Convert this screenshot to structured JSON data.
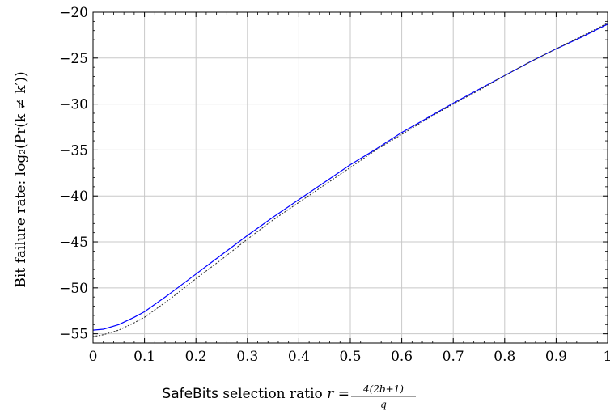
{
  "chart_data": {
    "type": "line",
    "xlim": [
      0,
      1
    ],
    "ylim": [
      -56,
      -20
    ],
    "x_ticks": [
      0,
      0.1,
      0.2,
      0.3,
      0.4,
      0.5,
      0.6,
      0.7,
      0.8,
      0.9,
      1
    ],
    "x_tick_labels": [
      "0",
      "0.1",
      "0.2",
      "0.3",
      "0.4",
      "0.5",
      "0.6",
      "0.7",
      "0.8",
      "0.9",
      "1"
    ],
    "y_ticks": [
      -55,
      -50,
      -45,
      -40,
      -35,
      -30,
      -25,
      -20
    ],
    "y_tick_labels": [
      "−55",
      "−50",
      "−45",
      "−40",
      "−35",
      "−30",
      "−25",
      "−20"
    ],
    "grid": true,
    "xlabel": {
      "sans_part": "SafeBits",
      "text_part": " selection ratio ",
      "var": "r",
      "eq": " = ",
      "numerator": "4(2b+1)",
      "denominator": "q"
    },
    "ylabel": "Bit failure rate: log₂(Pr(k ≠ k′))",
    "series": [
      {
        "style": "solid",
        "color": "#0000ff",
        "x": [
          0,
          0.02,
          0.05,
          0.08,
          0.1,
          0.15,
          0.2,
          0.25,
          0.3,
          0.35,
          0.4,
          0.45,
          0.5,
          0.55,
          0.6,
          0.65,
          0.7,
          0.75,
          0.8,
          0.85,
          0.9,
          0.95,
          1.0
        ],
        "y": [
          -54.6,
          -54.5,
          -54.0,
          -53.2,
          -52.6,
          -50.6,
          -48.5,
          -46.4,
          -44.3,
          -42.3,
          -40.4,
          -38.5,
          -36.6,
          -34.9,
          -33.1,
          -31.5,
          -29.9,
          -28.4,
          -26.9,
          -25.4,
          -24.0,
          -22.7,
          -21.3
        ]
      },
      {
        "style": "dotted",
        "color": "#333333",
        "x": [
          0,
          0.02,
          0.05,
          0.08,
          0.1,
          0.15,
          0.2,
          0.25,
          0.3,
          0.35,
          0.4,
          0.45,
          0.5,
          0.55,
          0.6,
          0.65,
          0.7,
          0.75,
          0.8,
          0.85,
          0.9,
          0.95,
          1.0
        ],
        "y": [
          -55.3,
          -55.1,
          -54.6,
          -53.8,
          -53.2,
          -51.2,
          -49.0,
          -46.9,
          -44.7,
          -42.6,
          -40.7,
          -38.8,
          -36.9,
          -35.0,
          -33.3,
          -31.6,
          -30.0,
          -28.5,
          -26.9,
          -25.4,
          -24.0,
          -22.6,
          -21.2
        ]
      }
    ]
  }
}
